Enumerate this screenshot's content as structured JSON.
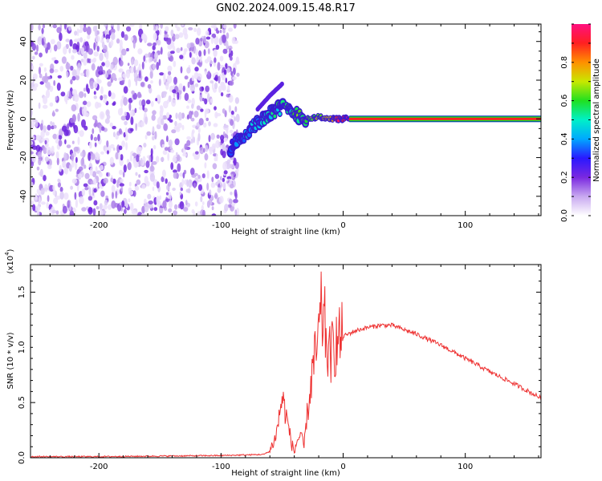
{
  "figure": {
    "title": "GN02.2024.009.15.48.R17"
  },
  "chart_data": [
    {
      "type": "heatmap",
      "xlabel": "Height of straight line (km)",
      "ylabel": "Frequency (Hz)",
      "xlim": [
        -256,
        162
      ],
      "ylim": [
        -50,
        49
      ],
      "xticks": [
        -200,
        -100,
        0,
        100
      ],
      "yticks": [
        -40,
        -20,
        0,
        20,
        40
      ],
      "colorbar": {
        "label": "Normalized spectral amplitude",
        "range": [
          0,
          1
        ],
        "ticks": [
          "0.0",
          "0.2",
          "0.4",
          "0.6",
          "0.8"
        ],
        "colormap": [
          "#ffffff",
          "#c8a8f0",
          "#7a28e0",
          "#2a18ff",
          "#00a8ff",
          "#00f0c8",
          "#20e020",
          "#c8e800",
          "#ff9000",
          "#ff2020",
          "#ff1080"
        ]
      },
      "series": [
        {
          "description": "Noise background",
          "x": [
            -256,
            -86
          ],
          "y": [
            -50,
            49
          ],
          "amplitude": 0.1
        },
        {
          "description": "Signal trace",
          "x": [
            -92,
            -80,
            -70,
            -60,
            -50,
            -40,
            -30,
            -20,
            -10,
            0,
            5,
            162
          ],
          "y": [
            -15,
            -8,
            -2,
            3,
            6,
            3,
            0,
            1,
            0,
            0,
            0,
            0
          ],
          "amplitude": [
            0.25,
            0.35,
            0.35,
            0.4,
            0.45,
            0.5,
            0.55,
            0.6,
            0.7,
            0.9,
            0.95,
            1.0
          ]
        },
        {
          "description": "Upper branch",
          "x": [
            -70,
            -60,
            -50
          ],
          "y": [
            5,
            12,
            18
          ],
          "amplitude": 0.2
        }
      ]
    },
    {
      "type": "line",
      "xlabel": "Height of straight line (km)",
      "ylabel": "SNR (10 * v/v)",
      "y_multiplier": "(x10",
      "y_multiplier_exponent": "4",
      "y_multiplier_close": ")",
      "xlim": [
        -256,
        162
      ],
      "ylim": [
        0,
        1.75
      ],
      "xticks": [
        -200,
        -100,
        0,
        100
      ],
      "yticks": [
        "0.0",
        "0.5",
        "1.0",
        "1.5"
      ],
      "color": "#ee3333",
      "series": [
        {
          "x": [
            -256,
            -200,
            -100,
            -65,
            -60,
            -55,
            -52,
            -50,
            -48,
            -45,
            -42,
            -40,
            -38,
            -35,
            -32,
            -30,
            -28,
            -25,
            -22,
            -20,
            -18,
            -15,
            -12,
            -10,
            -8,
            -5,
            0,
            10,
            20,
            30,
            40,
            60,
            80,
            100,
            120,
            140,
            162
          ],
          "y": [
            0.01,
            0.01,
            0.02,
            0.03,
            0.06,
            0.2,
            0.4,
            0.55,
            0.45,
            0.3,
            0.12,
            0.05,
            0.15,
            0.2,
            0.1,
            0.35,
            0.5,
            0.8,
            0.95,
            1.1,
            1.3,
            1.2,
            0.9,
            0.95,
            1.0,
            1.05,
            1.1,
            1.15,
            1.18,
            1.2,
            1.2,
            1.12,
            1.02,
            0.9,
            0.78,
            0.67,
            0.54
          ]
        }
      ]
    }
  ]
}
